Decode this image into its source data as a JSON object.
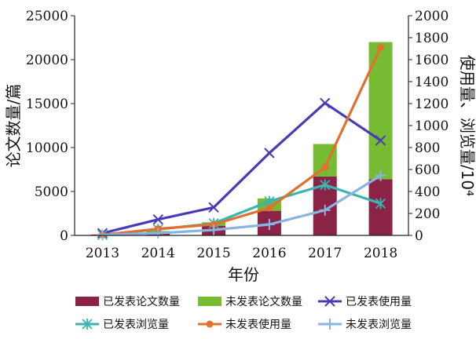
{
  "chart_data": {
    "type": "bar",
    "title": "",
    "categories": [
      "2013",
      "2014",
      "2015",
      "2016",
      "2017",
      "2018"
    ],
    "xlabel": "年份",
    "ylabel_left": "论文数量/篇",
    "ylabel_right": "使用量、浏览量/10⁴",
    "ylim_left": [
      0,
      25000
    ],
    "yticks_left": [
      "0",
      "5000",
      "10000",
      "15000",
      "20000",
      "25000"
    ],
    "ylim_right": [
      0,
      2000
    ],
    "yticks_right": [
      "0",
      "200",
      "400",
      "600",
      "800",
      "1000",
      "1200",
      "1400",
      "1600",
      "1800",
      "2000"
    ],
    "grid": false,
    "legend_position": "bottom",
    "bar_series": [
      {
        "name": "已发表论文数量",
        "color": "#8b2346",
        "values": [
          100,
          350,
          1100,
          2800,
          6700,
          6400
        ]
      },
      {
        "name": "未发表论文数量",
        "color": "#77bb33",
        "values": [
          0,
          150,
          400,
          1400,
          3700,
          15600
        ]
      }
    ],
    "line_series": [
      {
        "name": "已发表使用量",
        "color": "#4a3ab6",
        "marker": "x",
        "values": [
          20,
          145,
          255,
          750,
          1205,
          865
        ]
      },
      {
        "name": "已发表浏览量",
        "color": "#3ab5b0",
        "marker": "star",
        "values": [
          5,
          55,
          110,
          310,
          460,
          290
        ]
      },
      {
        "name": "未发表使用量",
        "color": "#e07030",
        "marker": "circle",
        "values": [
          5,
          60,
          100,
          250,
          620,
          1710
        ]
      },
      {
        "name": "未发表浏览量",
        "color": "#88b4e0",
        "marker": "plus",
        "values": [
          5,
          20,
          50,
          100,
          230,
          545
        ]
      }
    ]
  }
}
